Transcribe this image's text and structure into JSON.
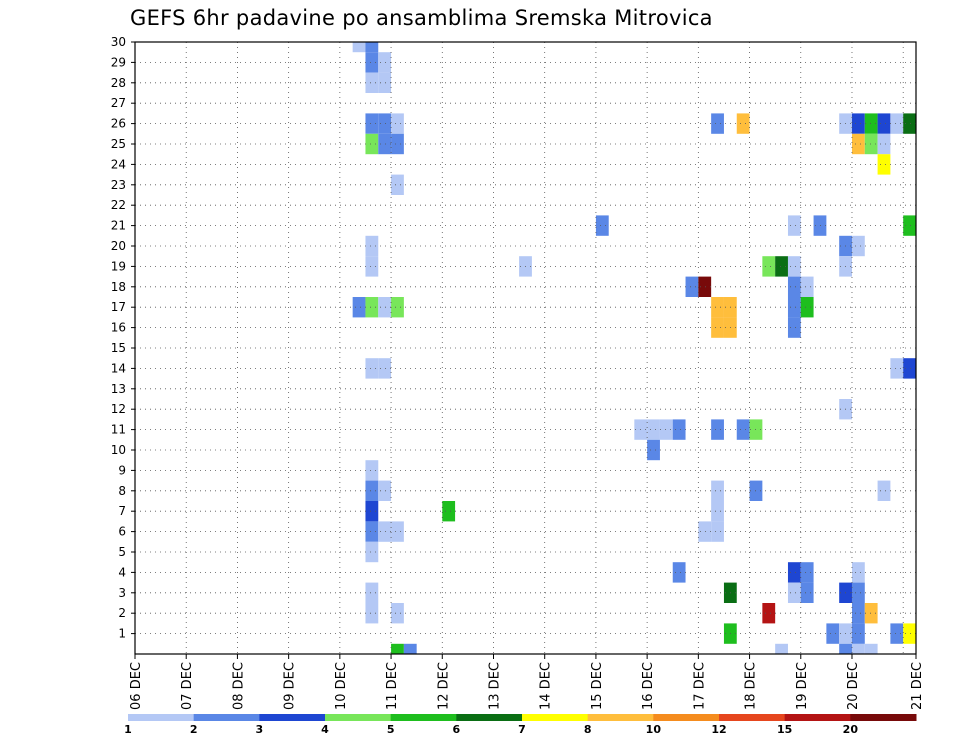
{
  "chart_data": {
    "type": "heatmap",
    "title": "GEFS 6hr padavine po ansamblima Sremska Mitrovica",
    "xlabel": "",
    "ylabel": "",
    "x_tick_labels": [
      "06 DEC",
      "07 DEC",
      "08 DEC",
      "09 DEC",
      "10 DEC",
      "11 DEC",
      "12 DEC",
      "13 DEC",
      "14 DEC",
      "15 DEC",
      "16 DEC",
      "17 DEC",
      "18 DEC",
      "19 DEC",
      "20 DEC",
      "21 DEC"
    ],
    "y_tick_labels": [
      "1",
      "2",
      "3",
      "4",
      "5",
      "6",
      "7",
      "8",
      "9",
      "10",
      "11",
      "12",
      "13",
      "14",
      "15",
      "16",
      "17",
      "18",
      "19",
      "20",
      "21",
      "22",
      "23",
      "24",
      "25",
      "26",
      "27",
      "28",
      "29",
      "30"
    ],
    "xlim_hours_from_06dec": [
      0,
      366
    ],
    "ylim_member": [
      0,
      30
    ],
    "cell_hours": 6,
    "colorbar": {
      "levels": [
        "1",
        "2",
        "3",
        "4",
        "5",
        "6",
        "7",
        "8",
        "10",
        "12",
        "15",
        "20"
      ],
      "colors": [
        "#b4c8f5",
        "#5a87e6",
        "#1e46d2",
        "#78e65a",
        "#1ebe1e",
        "#0a6e14",
        "#ffff00",
        "#ffbe3c",
        "#f58c1e",
        "#e6461e",
        "#b41414",
        "#780a0a"
      ]
    },
    "cells": [
      {
        "t": 102,
        "m": 30,
        "c": 0
      },
      {
        "t": 108,
        "m": 30,
        "c": 1
      },
      {
        "t": 108,
        "m": 29,
        "c": 1
      },
      {
        "t": 114,
        "m": 29,
        "c": 0
      },
      {
        "t": 108,
        "m": 28,
        "c": 0
      },
      {
        "t": 114,
        "m": 28,
        "c": 0
      },
      {
        "t": 108,
        "m": 26,
        "c": 1
      },
      {
        "t": 114,
        "m": 26,
        "c": 1
      },
      {
        "t": 120,
        "m": 26,
        "c": 0
      },
      {
        "t": 108,
        "m": 25,
        "c": 3
      },
      {
        "t": 114,
        "m": 25,
        "c": 1
      },
      {
        "t": 120,
        "m": 25,
        "c": 1
      },
      {
        "t": 120,
        "m": 23,
        "c": 0
      },
      {
        "t": 108,
        "m": 20,
        "c": 0
      },
      {
        "t": 108,
        "m": 19,
        "c": 0
      },
      {
        "t": 102,
        "m": 17,
        "c": 1
      },
      {
        "t": 108,
        "m": 17,
        "c": 3
      },
      {
        "t": 114,
        "m": 17,
        "c": 0
      },
      {
        "t": 120,
        "m": 17,
        "c": 3
      },
      {
        "t": 108,
        "m": 14,
        "c": 0
      },
      {
        "t": 114,
        "m": 14,
        "c": 0
      },
      {
        "t": 108,
        "m": 9,
        "c": 0
      },
      {
        "t": 108,
        "m": 8,
        "c": 1
      },
      {
        "t": 114,
        "m": 8,
        "c": 0
      },
      {
        "t": 108,
        "m": 7,
        "c": 2
      },
      {
        "t": 144,
        "m": 7,
        "c": 4
      },
      {
        "t": 108,
        "m": 6,
        "c": 1
      },
      {
        "t": 114,
        "m": 6,
        "c": 0
      },
      {
        "t": 120,
        "m": 6,
        "c": 0
      },
      {
        "t": 108,
        "m": 5,
        "c": 0
      },
      {
        "t": 108,
        "m": 3,
        "c": 0
      },
      {
        "t": 108,
        "m": 2,
        "c": 0
      },
      {
        "t": 120,
        "m": 2,
        "c": 0
      },
      {
        "t": 120,
        "m": 0,
        "c": 4
      },
      {
        "t": 126,
        "m": 0,
        "c": 1
      },
      {
        "t": 180,
        "m": 19,
        "c": 0
      },
      {
        "t": 216,
        "m": 21,
        "c": 1
      },
      {
        "t": 234,
        "m": 11,
        "c": 0
      },
      {
        "t": 240,
        "m": 11,
        "c": 0
      },
      {
        "t": 246,
        "m": 11,
        "c": 0
      },
      {
        "t": 252,
        "m": 11,
        "c": 1
      },
      {
        "t": 240,
        "m": 10,
        "c": 1
      },
      {
        "t": 252,
        "m": 4,
        "c": 1
      },
      {
        "t": 258,
        "m": 18,
        "c": 1
      },
      {
        "t": 264,
        "m": 18,
        "c": 11
      },
      {
        "t": 264,
        "m": 6,
        "c": 0
      },
      {
        "t": 270,
        "m": 6,
        "c": 0
      },
      {
        "t": 270,
        "m": 8,
        "c": 0
      },
      {
        "t": 270,
        "m": 7,
        "c": 0
      },
      {
        "t": 270,
        "m": 26,
        "c": 1
      },
      {
        "t": 270,
        "m": 17,
        "c": 7
      },
      {
        "t": 276,
        "m": 17,
        "c": 7
      },
      {
        "t": 270,
        "m": 16,
        "c": 7
      },
      {
        "t": 276,
        "m": 16,
        "c": 7
      },
      {
        "t": 270,
        "m": 11,
        "c": 1
      },
      {
        "t": 276,
        "m": 3,
        "c": 5
      },
      {
        "t": 276,
        "m": 1,
        "c": 4
      },
      {
        "t": 282,
        "m": 26,
        "c": 7
      },
      {
        "t": 282,
        "m": 11,
        "c": 1
      },
      {
        "t": 288,
        "m": 11,
        "c": 3
      },
      {
        "t": 288,
        "m": 8,
        "c": 1
      },
      {
        "t": 294,
        "m": 19,
        "c": 3
      },
      {
        "t": 300,
        "m": 19,
        "c": 5
      },
      {
        "t": 294,
        "m": 2,
        "c": 10
      },
      {
        "t": 300,
        "m": 0,
        "c": 0
      },
      {
        "t": 306,
        "m": 21,
        "c": 0
      },
      {
        "t": 318,
        "m": 21,
        "c": 1
      },
      {
        "t": 306,
        "m": 19,
        "c": 0
      },
      {
        "t": 306,
        "m": 18,
        "c": 1
      },
      {
        "t": 312,
        "m": 18,
        "c": 0
      },
      {
        "t": 306,
        "m": 17,
        "c": 1
      },
      {
        "t": 312,
        "m": 17,
        "c": 4
      },
      {
        "t": 306,
        "m": 16,
        "c": 1
      },
      {
        "t": 306,
        "m": 4,
        "c": 2
      },
      {
        "t": 312,
        "m": 4,
        "c": 1
      },
      {
        "t": 306,
        "m": 3,
        "c": 0
      },
      {
        "t": 312,
        "m": 3,
        "c": 1
      },
      {
        "t": 324,
        "m": 1,
        "c": 1
      },
      {
        "t": 330,
        "m": 1,
        "c": 0
      },
      {
        "t": 330,
        "m": 0,
        "c": 1
      },
      {
        "t": 336,
        "m": 0,
        "c": 0
      },
      {
        "t": 342,
        "m": 0,
        "c": 0
      },
      {
        "t": 330,
        "m": 26,
        "c": 0
      },
      {
        "t": 336,
        "m": 26,
        "c": 2
      },
      {
        "t": 342,
        "m": 26,
        "c": 4
      },
      {
        "t": 348,
        "m": 26,
        "c": 2
      },
      {
        "t": 354,
        "m": 26,
        "c": 0
      },
      {
        "t": 360,
        "m": 26,
        "c": 5
      },
      {
        "t": 336,
        "m": 25,
        "c": 7
      },
      {
        "t": 342,
        "m": 25,
        "c": 3
      },
      {
        "t": 348,
        "m": 25,
        "c": 0
      },
      {
        "t": 348,
        "m": 24,
        "c": 6
      },
      {
        "t": 330,
        "m": 20,
        "c": 1
      },
      {
        "t": 336,
        "m": 20,
        "c": 0
      },
      {
        "t": 330,
        "m": 19,
        "c": 0
      },
      {
        "t": 330,
        "m": 12,
        "c": 0
      },
      {
        "t": 336,
        "m": 4,
        "c": 0
      },
      {
        "t": 330,
        "m": 3,
        "c": 2
      },
      {
        "t": 336,
        "m": 3,
        "c": 1
      },
      {
        "t": 336,
        "m": 2,
        "c": 1
      },
      {
        "t": 342,
        "m": 2,
        "c": 7
      },
      {
        "t": 336,
        "m": 1,
        "c": 1
      },
      {
        "t": 360,
        "m": 21,
        "c": 4
      },
      {
        "t": 354,
        "m": 14,
        "c": 0
      },
      {
        "t": 360,
        "m": 14,
        "c": 2
      },
      {
        "t": 348,
        "m": 8,
        "c": 0
      },
      {
        "t": 354,
        "m": 1,
        "c": 1
      },
      {
        "t": 360,
        "m": 1,
        "c": 6
      }
    ]
  }
}
